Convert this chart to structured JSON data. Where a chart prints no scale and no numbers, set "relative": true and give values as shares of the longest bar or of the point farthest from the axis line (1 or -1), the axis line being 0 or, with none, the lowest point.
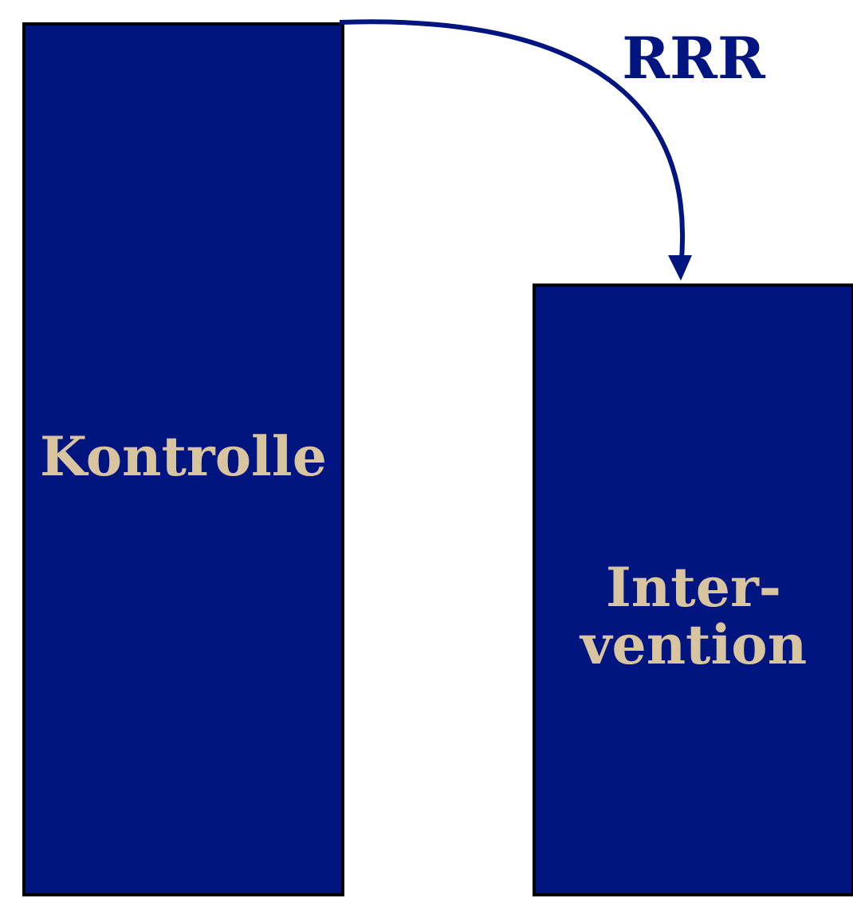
{
  "chart_data": {
    "type": "bar",
    "relative": true,
    "categories": [
      "Kontrolle",
      "Inter-\nvention"
    ],
    "values": [
      1,
      0.7
    ],
    "color": "#001580",
    "annotations": [
      "RRR"
    ]
  }
}
